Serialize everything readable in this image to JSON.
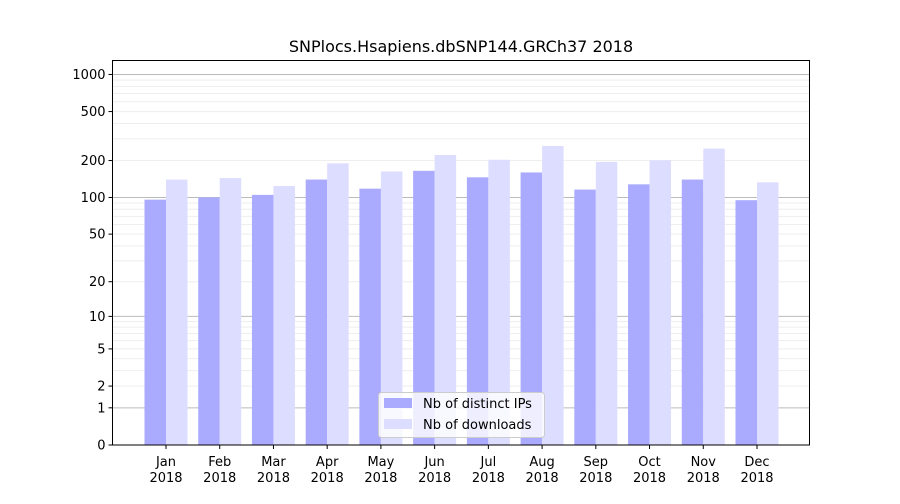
{
  "chart_data": {
    "type": "bar",
    "title": "SNPlocs.Hsapiens.dbSNP144.GRCh37 2018",
    "xlabel": "",
    "ylabel": "",
    "y_scale": "log (value + 1)",
    "ylim": [
      0,
      1300
    ],
    "yticks": [
      0,
      1,
      2,
      5,
      10,
      20,
      50,
      100,
      200,
      500,
      1000
    ],
    "grid": true,
    "legend_position": "bottom-center",
    "categories": [
      [
        "Jan",
        "2018"
      ],
      [
        "Feb",
        "2018"
      ],
      [
        "Mar",
        "2018"
      ],
      [
        "Apr",
        "2018"
      ],
      [
        "May",
        "2018"
      ],
      [
        "Jun",
        "2018"
      ],
      [
        "Jul",
        "2018"
      ],
      [
        "Aug",
        "2018"
      ],
      [
        "Sep",
        "2018"
      ],
      [
        "Oct",
        "2018"
      ],
      [
        "Nov",
        "2018"
      ],
      [
        "Dec",
        "2018"
      ]
    ],
    "series": [
      {
        "name": "Nb of distinct IPs",
        "color": "#aaaaff",
        "values": [
          96,
          100,
          105,
          140,
          118,
          165,
          146,
          160,
          116,
          128,
          140,
          95
        ]
      },
      {
        "name": "Nb of downloads",
        "color": "#ddddff",
        "values": [
          140,
          144,
          124,
          190,
          163,
          222,
          203,
          263,
          195,
          201,
          250,
          133
        ]
      }
    ]
  }
}
